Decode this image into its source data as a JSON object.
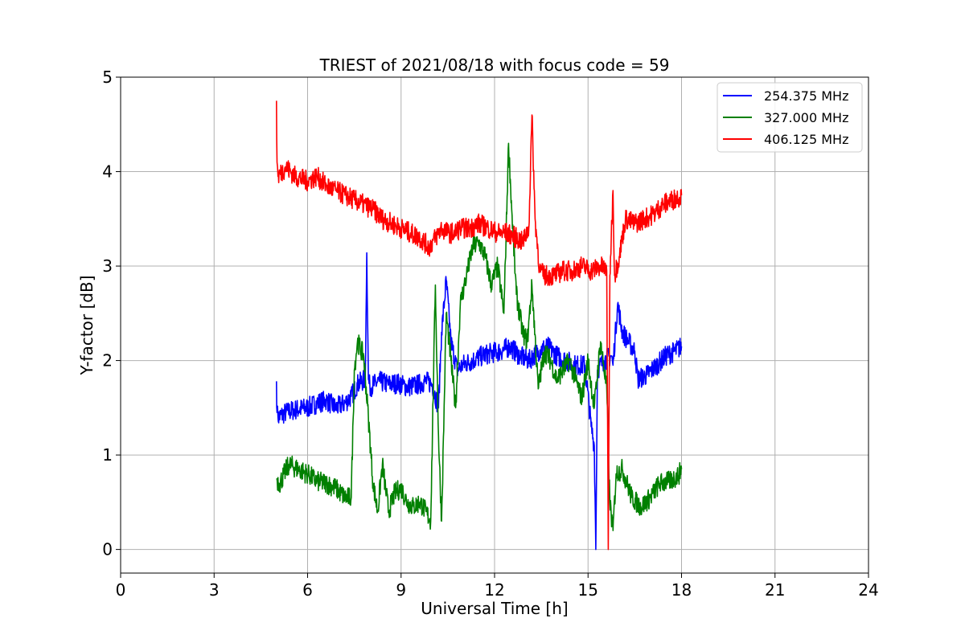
{
  "chart_data": {
    "type": "line",
    "title": "TRIEST of 2021/08/18 with focus code = 59",
    "xlabel": "Universal Time [h]",
    "ylabel": "Y-factor [dB]",
    "xlim": [
      0,
      24
    ],
    "ylim": [
      -0.25,
      5
    ],
    "xticks": [
      0,
      3,
      6,
      9,
      12,
      15,
      18,
      21,
      24
    ],
    "yticks": [
      0,
      1,
      2,
      3,
      4,
      5
    ],
    "xtick_labels": [
      "0",
      "3",
      "6",
      "9",
      "12",
      "15",
      "18",
      "21",
      "24"
    ],
    "ytick_labels": [
      "0",
      "1",
      "2",
      "3",
      "4",
      "5"
    ],
    "grid": true,
    "legend_position": "top-right",
    "series": [
      {
        "name": "254.375 MHz",
        "color": "#0000ff",
        "x": [
          5.0,
          5.02,
          5.05,
          5.3,
          5.6,
          6.0,
          6.3,
          6.6,
          6.9,
          7.2,
          7.4,
          7.6,
          7.85,
          7.9,
          7.95,
          8.0,
          8.3,
          8.6,
          8.9,
          9.2,
          9.5,
          9.8,
          10.0,
          10.2,
          10.3,
          10.45,
          10.6,
          10.8,
          11.0,
          11.3,
          11.6,
          11.9,
          12.2,
          12.5,
          12.8,
          13.1,
          13.4,
          13.7,
          14.0,
          14.3,
          14.6,
          14.9,
          15.1,
          15.2,
          15.25,
          15.3,
          15.5,
          15.75,
          15.8,
          15.95,
          16.1,
          16.3,
          16.5,
          16.6,
          16.9,
          17.2,
          17.5,
          17.8,
          18.0
        ],
        "y": [
          1.78,
          1.45,
          1.4,
          1.45,
          1.48,
          1.5,
          1.55,
          1.58,
          1.5,
          1.55,
          1.62,
          1.75,
          1.8,
          3.14,
          1.8,
          1.72,
          1.78,
          1.75,
          1.76,
          1.72,
          1.74,
          1.78,
          1.75,
          1.5,
          2.3,
          2.85,
          2.2,
          1.9,
          1.96,
          2.0,
          2.05,
          2.08,
          2.1,
          2.15,
          2.05,
          2.0,
          2.1,
          2.15,
          2.05,
          2.0,
          1.95,
          1.95,
          1.3,
          1.1,
          0.0,
          1.9,
          2.0,
          2.05,
          1.95,
          2.6,
          2.3,
          2.2,
          2.1,
          1.8,
          1.85,
          1.95,
          2.05,
          2.1,
          2.15
        ]
      },
      {
        "name": "327.000 MHz",
        "color": "#008000",
        "x": [
          5.0,
          5.1,
          5.4,
          5.7,
          6.0,
          6.3,
          6.6,
          6.9,
          7.2,
          7.4,
          7.5,
          7.6,
          7.8,
          7.95,
          8.1,
          8.25,
          8.4,
          8.6,
          8.8,
          9.0,
          9.2,
          9.4,
          9.6,
          9.8,
          9.95,
          10.1,
          10.2,
          10.3,
          10.45,
          10.6,
          10.75,
          10.9,
          11.1,
          11.3,
          11.5,
          11.7,
          11.9,
          12.1,
          12.3,
          12.45,
          12.55,
          12.7,
          12.9,
          13.05,
          13.2,
          13.4,
          13.6,
          13.8,
          14.0,
          14.2,
          14.4,
          14.6,
          14.8,
          15.0,
          15.2,
          15.4,
          15.6,
          15.7,
          15.8,
          15.9,
          16.1,
          16.4,
          16.7,
          17.0,
          17.3,
          17.6,
          17.9,
          18.0
        ],
        "y": [
          0.75,
          0.7,
          0.9,
          0.85,
          0.8,
          0.72,
          0.7,
          0.65,
          0.55,
          0.55,
          1.9,
          2.2,
          2.05,
          1.4,
          0.7,
          0.4,
          0.9,
          0.4,
          0.6,
          0.65,
          0.5,
          0.45,
          0.5,
          0.4,
          0.3,
          2.8,
          1.2,
          0.3,
          2.5,
          2.0,
          1.5,
          2.6,
          2.9,
          3.2,
          3.25,
          3.1,
          2.8,
          3.0,
          2.5,
          4.3,
          3.6,
          2.7,
          2.3,
          2.2,
          2.8,
          1.7,
          2.1,
          2.0,
          1.8,
          1.9,
          2.0,
          1.8,
          1.6,
          2.0,
          1.5,
          2.2,
          1.7,
          0.5,
          0.2,
          0.8,
          0.85,
          0.55,
          0.45,
          0.55,
          0.7,
          0.72,
          0.78,
          0.85
        ]
      },
      {
        "name": "406.125 MHz",
        "color": "#ff0000",
        "x": [
          5.0,
          5.02,
          5.05,
          5.3,
          5.6,
          6.0,
          6.3,
          6.6,
          6.9,
          7.2,
          7.5,
          7.8,
          8.1,
          8.4,
          8.7,
          9.0,
          9.3,
          9.6,
          9.9,
          10.1,
          10.3,
          10.5,
          10.7,
          10.9,
          11.2,
          11.5,
          11.8,
          12.1,
          12.4,
          12.7,
          12.9,
          13.1,
          13.2,
          13.3,
          13.45,
          13.6,
          13.9,
          14.2,
          14.5,
          14.8,
          15.1,
          15.4,
          15.6,
          15.65,
          15.7,
          15.8,
          15.85,
          16.0,
          16.2,
          16.5,
          16.8,
          17.1,
          17.4,
          17.7,
          18.0
        ],
        "y": [
          4.75,
          4.1,
          3.95,
          4.05,
          3.95,
          3.9,
          3.95,
          3.85,
          3.8,
          3.75,
          3.7,
          3.65,
          3.6,
          3.5,
          3.45,
          3.4,
          3.35,
          3.3,
          3.2,
          3.3,
          3.4,
          3.35,
          3.35,
          3.4,
          3.4,
          3.45,
          3.4,
          3.35,
          3.35,
          3.3,
          3.25,
          3.4,
          4.6,
          3.5,
          2.95,
          2.9,
          2.9,
          2.95,
          2.95,
          3.0,
          2.95,
          3.0,
          2.95,
          0.0,
          2.9,
          3.8,
          2.9,
          3.1,
          3.5,
          3.45,
          3.5,
          3.55,
          3.65,
          3.7,
          3.75
        ]
      }
    ]
  }
}
